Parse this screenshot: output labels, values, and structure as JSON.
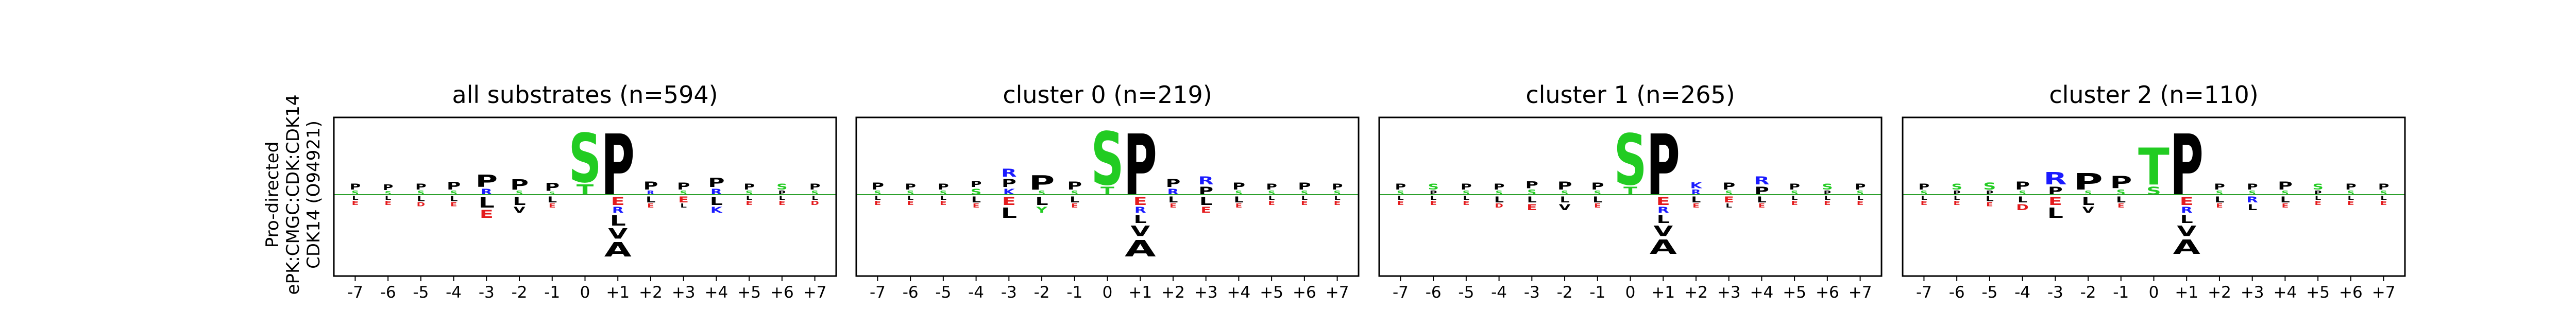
{
  "figure": {
    "ylabel_lines": [
      "Pro-directed",
      "ePK:CMGC:CDK:CDK14",
      "CDK14 (O94921)"
    ]
  },
  "colors": {
    "hydrophobic": "#000000",
    "acidic": "#e41a1c",
    "basic": "#1a1aff",
    "polar": "#22cc22",
    "amide": "#a64ca6",
    "frame": "#000000",
    "zero_line": "#2ca02c"
  },
  "chart_data": [
    {
      "type": "sequence-logo",
      "title": "all substrates (n=594)",
      "positions": [
        "-7",
        "-6",
        "-5",
        "-4",
        "-3",
        "-2",
        "-1",
        "0",
        "+1",
        "+2",
        "+3",
        "+4",
        "+5",
        "+6",
        "+7"
      ],
      "enriched": [
        [
          [
            "P",
            0.3
          ],
          [
            "S",
            0.2
          ]
        ],
        [
          [
            "P",
            0.28
          ],
          [
            "S",
            0.18
          ]
        ],
        [
          [
            "P",
            0.3
          ],
          [
            "S",
            0.2
          ]
        ],
        [
          [
            "P",
            0.38
          ],
          [
            "S",
            0.2
          ]
        ],
        [
          [
            "P",
            0.6
          ],
          [
            "R",
            0.3
          ]
        ],
        [
          [
            "P",
            0.5
          ],
          [
            "S",
            0.2
          ]
        ],
        [
          [
            "P",
            0.4
          ],
          [
            "S",
            0.15
          ]
        ],
        [
          [
            "S",
            2.4
          ],
          [
            "T",
            0.5
          ]
        ],
        [
          [
            "P",
            3.0
          ]
        ],
        [
          [
            "P",
            0.4
          ],
          [
            "R",
            0.2
          ]
        ],
        [
          [
            "P",
            0.35
          ],
          [
            "S",
            0.2
          ]
        ],
        [
          [
            "P",
            0.45
          ],
          [
            "R",
            0.3
          ]
        ],
        [
          [
            "P",
            0.3
          ],
          [
            "S",
            0.2
          ]
        ],
        [
          [
            "S",
            0.3
          ],
          [
            "P",
            0.2
          ]
        ],
        [
          [
            "P",
            0.3
          ],
          [
            "S",
            0.2
          ]
        ]
      ],
      "depleted": [
        [
          [
            "L",
            0.2
          ],
          [
            "E",
            0.2
          ]
        ],
        [
          [
            "L",
            0.2
          ],
          [
            "E",
            0.2
          ]
        ],
        [
          [
            "L",
            0.25
          ],
          [
            "D",
            0.2
          ]
        ],
        [
          [
            "L",
            0.25
          ],
          [
            "E",
            0.2
          ]
        ],
        [
          [
            "L",
            0.5
          ],
          [
            "E",
            0.4
          ]
        ],
        [
          [
            "L",
            0.4
          ],
          [
            "V",
            0.3
          ]
        ],
        [
          [
            "L",
            0.3
          ],
          [
            "E",
            0.2
          ]
        ],
        [],
        [
          [
            "E",
            0.4
          ],
          [
            "R",
            0.3
          ],
          [
            "L",
            0.5
          ],
          [
            "V",
            0.5
          ],
          [
            "A",
            0.7
          ]
        ],
        [
          [
            "L",
            0.3
          ],
          [
            "E",
            0.2
          ]
        ],
        [
          [
            "E",
            0.3
          ],
          [
            "L",
            0.2
          ]
        ],
        [
          [
            "L",
            0.4
          ],
          [
            "K",
            0.3
          ]
        ],
        [
          [
            "L",
            0.2
          ],
          [
            "E",
            0.2
          ]
        ],
        [
          [
            "L",
            0.2
          ],
          [
            "E",
            0.2
          ]
        ],
        [
          [
            "L",
            0.2
          ],
          [
            "D",
            0.2
          ]
        ]
      ]
    },
    {
      "type": "sequence-logo",
      "title": "cluster 0 (n=219)",
      "positions": [
        "-7",
        "-6",
        "-5",
        "-4",
        "-3",
        "-2",
        "-1",
        "0",
        "+1",
        "+2",
        "+3",
        "+4",
        "+5",
        "+6",
        "+7"
      ],
      "enriched": [
        [
          [
            "P",
            0.35
          ],
          [
            "S",
            0.2
          ]
        ],
        [
          [
            "P",
            0.3
          ],
          [
            "S",
            0.2
          ]
        ],
        [
          [
            "P",
            0.3
          ],
          [
            "S",
            0.2
          ]
        ],
        [
          [
            "S",
            0.3
          ],
          [
            "P",
            0.3
          ]
        ],
        [
          [
            "P",
            0.4
          ],
          [
            "K",
            0.3
          ],
          [
            "R",
            0.4
          ]
        ],
        [
          [
            "P",
            0.7
          ],
          [
            "S",
            0.2
          ]
        ],
        [
          [
            "P",
            0.4
          ],
          [
            "S",
            0.2
          ]
        ],
        [
          [
            "S",
            2.6
          ],
          [
            "T",
            0.4
          ]
        ],
        [
          [
            "P",
            3.0
          ]
        ],
        [
          [
            "P",
            0.4
          ],
          [
            "R",
            0.3
          ]
        ],
        [
          [
            "P",
            0.4
          ],
          [
            "R",
            0.4
          ]
        ],
        [
          [
            "P",
            0.35
          ],
          [
            "S",
            0.2
          ]
        ],
        [
          [
            "P",
            0.3
          ],
          [
            "S",
            0.2
          ]
        ],
        [
          [
            "P",
            0.35
          ],
          [
            "S",
            0.2
          ]
        ],
        [
          [
            "P",
            0.3
          ],
          [
            "S",
            0.2
          ]
        ]
      ],
      "depleted": [
        [
          [
            "L",
            0.2
          ],
          [
            "E",
            0.2
          ]
        ],
        [
          [
            "L",
            0.2
          ],
          [
            "E",
            0.2
          ]
        ],
        [
          [
            "L",
            0.2
          ],
          [
            "E",
            0.2
          ]
        ],
        [
          [
            "L",
            0.3
          ],
          [
            "E",
            0.2
          ]
        ],
        [
          [
            "E",
            0.4
          ],
          [
            "L",
            0.5
          ]
        ],
        [
          [
            "L",
            0.4
          ],
          [
            "Y",
            0.3
          ]
        ],
        [
          [
            "L",
            0.3
          ],
          [
            "E",
            0.2
          ]
        ],
        [],
        [
          [
            "E",
            0.4
          ],
          [
            "R",
            0.3
          ],
          [
            "L",
            0.4
          ],
          [
            "V",
            0.5
          ],
          [
            "A",
            0.8
          ]
        ],
        [
          [
            "L",
            0.3
          ],
          [
            "E",
            0.2
          ]
        ],
        [
          [
            "L",
            0.4
          ],
          [
            "E",
            0.3
          ]
        ],
        [
          [
            "L",
            0.3
          ],
          [
            "E",
            0.2
          ]
        ],
        [
          [
            "L",
            0.2
          ],
          [
            "E",
            0.2
          ]
        ],
        [
          [
            "L",
            0.2
          ],
          [
            "E",
            0.2
          ]
        ],
        [
          [
            "L",
            0.2
          ],
          [
            "E",
            0.2
          ]
        ]
      ]
    },
    {
      "type": "sequence-logo",
      "title": "cluster 1 (n=265)",
      "positions": [
        "-7",
        "-6",
        "-5",
        "-4",
        "-3",
        "-2",
        "-1",
        "0",
        "+1",
        "+2",
        "+3",
        "+4",
        "+5",
        "+6",
        "+7"
      ],
      "enriched": [
        [
          [
            "P",
            0.3
          ],
          [
            "S",
            0.2
          ]
        ],
        [
          [
            "S",
            0.3
          ],
          [
            "P",
            0.2
          ]
        ],
        [
          [
            "P",
            0.3
          ],
          [
            "S",
            0.2
          ]
        ],
        [
          [
            "P",
            0.3
          ],
          [
            "S",
            0.2
          ]
        ],
        [
          [
            "P",
            0.35
          ],
          [
            "S",
            0.25
          ]
        ],
        [
          [
            "P",
            0.4
          ],
          [
            "S",
            0.2
          ]
        ],
        [
          [
            "P",
            0.35
          ],
          [
            "S",
            0.2
          ]
        ],
        [
          [
            "S",
            2.5
          ],
          [
            "T",
            0.4
          ]
        ],
        [
          [
            "P",
            3.0
          ]
        ],
        [
          [
            "K",
            0.3
          ],
          [
            "R",
            0.25
          ]
        ],
        [
          [
            "P",
            0.35
          ],
          [
            "S",
            0.2
          ]
        ],
        [
          [
            "P",
            0.4
          ],
          [
            "R",
            0.4
          ]
        ],
        [
          [
            "P",
            0.3
          ],
          [
            "S",
            0.2
          ]
        ],
        [
          [
            "S",
            0.3
          ],
          [
            "P",
            0.2
          ]
        ],
        [
          [
            "P",
            0.3
          ],
          [
            "S",
            0.2
          ]
        ]
      ],
      "depleted": [
        [
          [
            "L",
            0.2
          ],
          [
            "E",
            0.2
          ]
        ],
        [
          [
            "L",
            0.2
          ],
          [
            "E",
            0.2
          ]
        ],
        [
          [
            "L",
            0.2
          ],
          [
            "E",
            0.2
          ]
        ],
        [
          [
            "L",
            0.3
          ],
          [
            "D",
            0.2
          ]
        ],
        [
          [
            "L",
            0.3
          ],
          [
            "E",
            0.3
          ]
        ],
        [
          [
            "L",
            0.3
          ],
          [
            "V",
            0.3
          ]
        ],
        [
          [
            "L",
            0.3
          ],
          [
            "E",
            0.2
          ]
        ],
        [],
        [
          [
            "E",
            0.4
          ],
          [
            "R",
            0.3
          ],
          [
            "L",
            0.4
          ],
          [
            "V",
            0.5
          ],
          [
            "A",
            0.7
          ]
        ],
        [
          [
            "L",
            0.3
          ],
          [
            "E",
            0.2
          ]
        ],
        [
          [
            "E",
            0.3
          ],
          [
            "L",
            0.2
          ]
        ],
        [
          [
            "L",
            0.3
          ],
          [
            "E",
            0.2
          ]
        ],
        [
          [
            "L",
            0.2
          ],
          [
            "E",
            0.2
          ]
        ],
        [
          [
            "L",
            0.2
          ],
          [
            "E",
            0.2
          ]
        ],
        [
          [
            "L",
            0.2
          ],
          [
            "E",
            0.2
          ]
        ]
      ]
    },
    {
      "type": "sequence-logo",
      "title": "cluster 2 (n=110)",
      "positions": [
        "-7",
        "-6",
        "-5",
        "-4",
        "-3",
        "-2",
        "-1",
        "0",
        "+1",
        "+2",
        "+3",
        "+4",
        "+5",
        "+6",
        "+7"
      ],
      "enriched": [
        [
          [
            "P",
            0.3
          ],
          [
            "S",
            0.2
          ]
        ],
        [
          [
            "S",
            0.3
          ],
          [
            "P",
            0.2
          ]
        ],
        [
          [
            "S",
            0.35
          ],
          [
            "P",
            0.2
          ]
        ],
        [
          [
            "P",
            0.4
          ],
          [
            "S",
            0.2
          ]
        ],
        [
          [
            "P",
            0.4
          ],
          [
            "R",
            0.6
          ]
        ],
        [
          [
            "P",
            0.8
          ],
          [
            "S",
            0.2
          ]
        ],
        [
          [
            "P",
            0.6
          ],
          [
            "S",
            0.25
          ]
        ],
        [
          [
            "S",
            0.4
          ],
          [
            "T",
            1.8
          ]
        ],
        [
          [
            "P",
            3.0
          ]
        ],
        [
          [
            "P",
            0.3
          ],
          [
            "S",
            0.2
          ]
        ],
        [
          [
            "P",
            0.3
          ],
          [
            "S",
            0.2
          ]
        ],
        [
          [
            "P",
            0.4
          ],
          [
            "S",
            0.2
          ]
        ],
        [
          [
            "S",
            0.3
          ],
          [
            "P",
            0.2
          ]
        ],
        [
          [
            "P",
            0.3
          ],
          [
            "S",
            0.2
          ]
        ],
        [
          [
            "P",
            0.3
          ],
          [
            "S",
            0.2
          ]
        ]
      ],
      "depleted": [
        [
          [
            "L",
            0.2
          ],
          [
            "E",
            0.2
          ]
        ],
        [
          [
            "L",
            0.2
          ],
          [
            "E",
            0.2
          ]
        ],
        [
          [
            "L",
            0.25
          ],
          [
            "E",
            0.2
          ]
        ],
        [
          [
            "L",
            0.3
          ],
          [
            "D",
            0.3
          ]
        ],
        [
          [
            "E",
            0.4
          ],
          [
            "L",
            0.5
          ]
        ],
        [
          [
            "L",
            0.4
          ],
          [
            "V",
            0.3
          ]
        ],
        [
          [
            "L",
            0.3
          ],
          [
            "E",
            0.2
          ]
        ],
        [],
        [
          [
            "E",
            0.4
          ],
          [
            "R",
            0.3
          ],
          [
            "L",
            0.4
          ],
          [
            "V",
            0.5
          ],
          [
            "A",
            0.7
          ]
        ],
        [
          [
            "L",
            0.3
          ],
          [
            "E",
            0.2
          ]
        ],
        [
          [
            "R",
            0.3
          ],
          [
            "L",
            0.3
          ]
        ],
        [
          [
            "L",
            0.3
          ],
          [
            "E",
            0.2
          ]
        ],
        [
          [
            "L",
            0.2
          ],
          [
            "E",
            0.2
          ]
        ],
        [
          [
            "L",
            0.2
          ],
          [
            "E",
            0.2
          ]
        ],
        [
          [
            "L",
            0.2
          ],
          [
            "E",
            0.2
          ]
        ]
      ]
    }
  ]
}
